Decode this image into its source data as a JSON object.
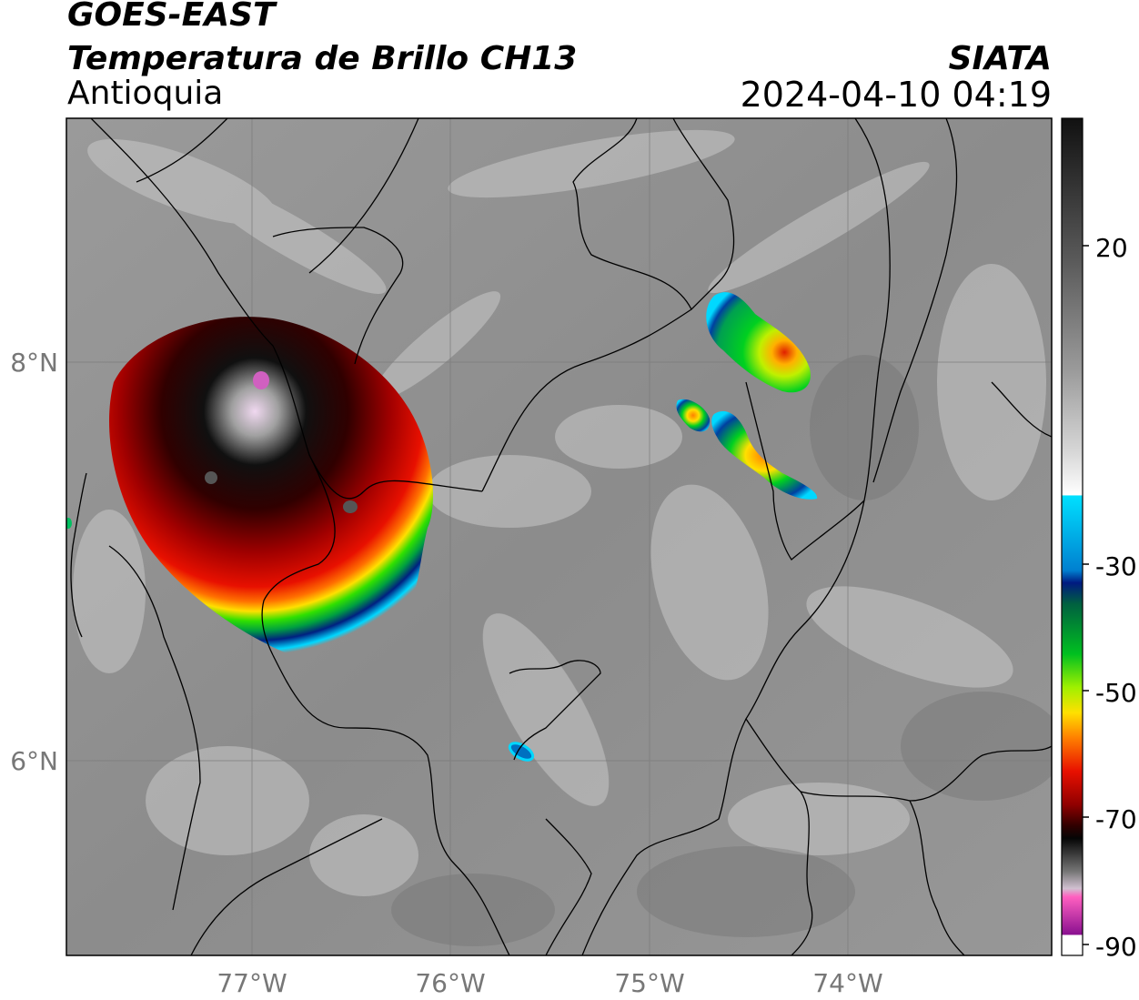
{
  "header": {
    "satellite": "GOES-EAST",
    "product": "Temperatura de Brillo CH13",
    "region": "Antioquia",
    "institution": "SIATA",
    "datetime": "2024-04-10 04:19"
  },
  "axes": {
    "lon_labels": [
      "77°W",
      "76°W",
      "75°W",
      "74°W"
    ],
    "lat_labels": [
      "8°N",
      "6°N"
    ]
  },
  "colorbar": {
    "tick_labels": [
      "20",
      "-30",
      "-50",
      "-70",
      "-90"
    ],
    "colors": {
      "black": "#111111",
      "gray_mid": "#8a8a8a",
      "white": "#ffffff",
      "cyan": "#00d8ff",
      "dark_blue": "#001a80",
      "green": "#00c020",
      "yellow": "#ffe000",
      "red": "#e81000",
      "dark_red": "#700000",
      "magenta": "#c020a0"
    }
  }
}
